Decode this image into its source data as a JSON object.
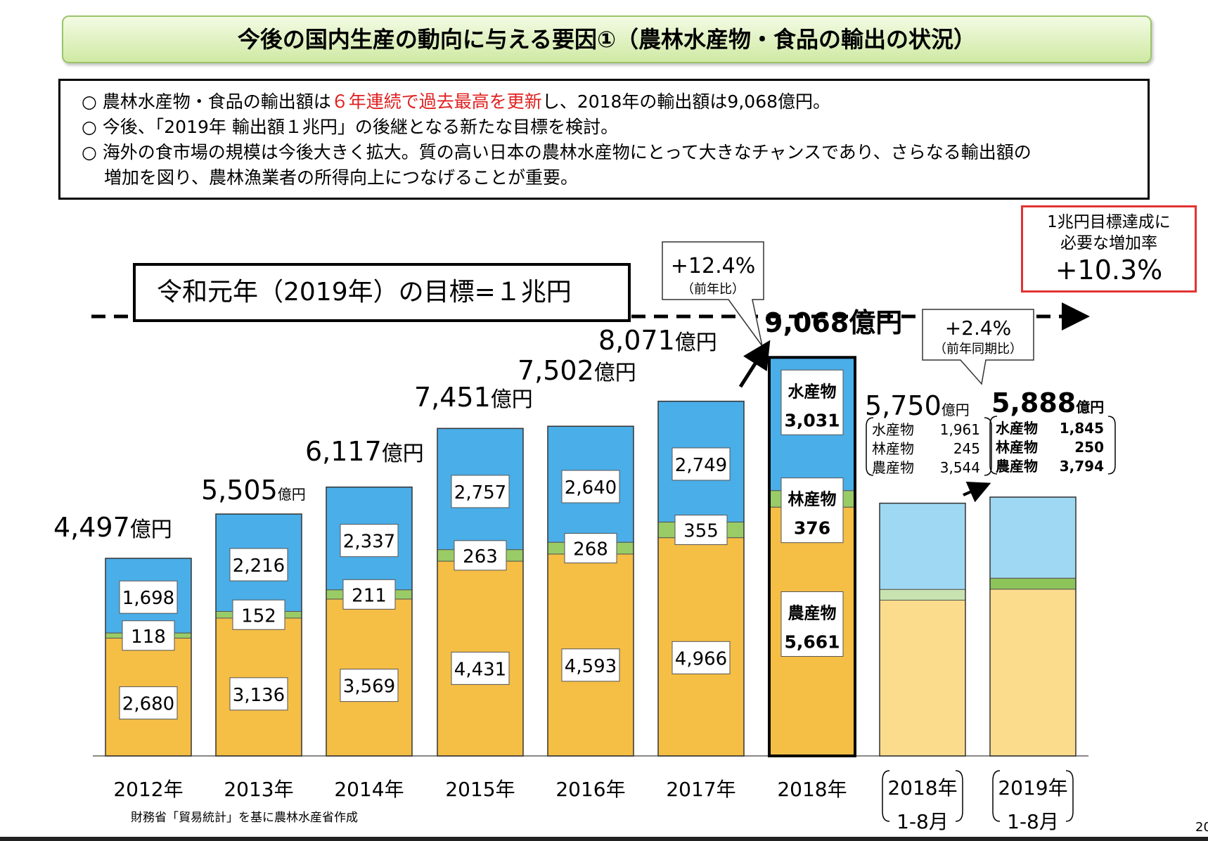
{
  "title": "今後の国内生産の動向に与える要因①（農林水産物・食品の輸出の状況）",
  "summary": {
    "bullet": "○",
    "line1_pre": "農林水産物・食品の輸出額は",
    "line1_red": "６年連続で過去最高を更新",
    "line1_post": "し、2018年の輸出額は9,068億円。",
    "line2": "今後、「2019年 輸出額１兆円」の後継となる新たな目標を検討。",
    "line3": "海外の食市場の規模は今後大きく拡大。質の高い日本の農林水産物にとって大きなチャンスであり、さらなる輸出額の",
    "line3_cont": "増加を図り、農林漁業者の所得向上につなげることが重要。"
  },
  "goal_text": "令和元年（2019年）の目標=１兆円",
  "target_box": {
    "line1": "1兆円目標達成に",
    "line2": "必要な増加率",
    "value": "+10.3%"
  },
  "annotations": {
    "yoy_value": "+12.4%",
    "yoy_label": "（前年比）",
    "ytd_value": "+2.4%",
    "ytd_label": "（前年同期比）"
  },
  "unit": "億円",
  "source": "財務省「貿易統計」を基に農林水産省作成",
  "page_number": "20",
  "colors": {
    "fishery": "#4aaee8",
    "forestry": "#99cc66",
    "agri": "#f5be45",
    "fishery_light": "#9fd8f2",
    "forestry_light": "#c8e3b0",
    "agri_light": "#fbdc8c",
    "fishery_partial": "#9fd8f2",
    "forestry_partial": "#8cc45a",
    "agri_partial": "#fbdc8c"
  },
  "chart_data": {
    "type": "bar",
    "stacked": true,
    "categories": [
      "2012年",
      "2013年",
      "2014年",
      "2015年",
      "2016年",
      "2017年",
      "2018年",
      "2018年\n1-8月",
      "2019年\n1-8月"
    ],
    "series": [
      {
        "name": "農産物",
        "values": [
          2680,
          3136,
          3569,
          4431,
          4593,
          4966,
          5661,
          3544,
          3794
        ]
      },
      {
        "name": "林産物",
        "values": [
          118,
          152,
          211,
          263,
          268,
          355,
          376,
          245,
          250
        ]
      },
      {
        "name": "水産物",
        "values": [
          1698,
          2216,
          2337,
          2757,
          2640,
          2749,
          3031,
          1961,
          1845
        ]
      }
    ],
    "totals": [
      "4,497",
      "5,505",
      "6,117",
      "7,451",
      "7,502",
      "8,071",
      "9,068",
      "5,750",
      "5,888"
    ],
    "value_labels": {
      "agri": [
        "2,680",
        "3,136",
        "3,569",
        "4,431",
        "4,593",
        "4,966",
        "5,661"
      ],
      "forestry": [
        "118",
        "152",
        "211",
        "263",
        "268",
        "355",
        "376"
      ],
      "fishery": [
        "1,698",
        "2,216",
        "2,337",
        "2,757",
        "2,640",
        "2,749",
        "3,031"
      ]
    },
    "breakdown_2018_1_8": [
      {
        "label": "水産物",
        "value": "1,961"
      },
      {
        "label": "林産物",
        "value": "245"
      },
      {
        "label": "農産物",
        "value": "3,544"
      }
    ],
    "breakdown_2019_1_8": [
      {
        "label": "水産物",
        "value": "1,845"
      },
      {
        "label": "林産物",
        "value": "250"
      },
      {
        "label": "農産物",
        "value": "3,794"
      }
    ],
    "target": 10000,
    "ylim": [
      0,
      10000
    ]
  }
}
